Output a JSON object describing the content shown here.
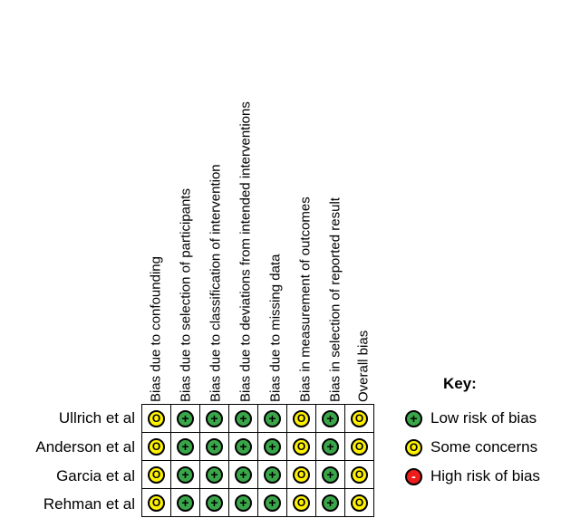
{
  "columns": [
    "Bias due to confounding",
    "Bias due to selection of participants",
    "Bias due to classification of intervention",
    "Bias due to deviations from intended interventions",
    "Bias due to missing data",
    "Bias in measurement of outcomes",
    "Bias in selection of reported result",
    "Overall bias"
  ],
  "studies": [
    {
      "name": "Ullrich et al",
      "ratings": [
        "some",
        "low",
        "low",
        "low",
        "low",
        "some",
        "low",
        "some"
      ]
    },
    {
      "name": "Anderson et al",
      "ratings": [
        "some",
        "low",
        "low",
        "low",
        "low",
        "some",
        "low",
        "some"
      ]
    },
    {
      "name": "Garcia et al",
      "ratings": [
        "some",
        "low",
        "low",
        "low",
        "low",
        "some",
        "low",
        "some"
      ]
    },
    {
      "name": "Rehman et al",
      "ratings": [
        "some",
        "low",
        "low",
        "low",
        "low",
        "some",
        "low",
        "some"
      ]
    }
  ],
  "key": {
    "title": "Key:",
    "items": [
      {
        "level": "low",
        "label": "Low risk of bias",
        "color": "#3aa64a"
      },
      {
        "level": "some",
        "label": "Some concerns",
        "color": "#fff200"
      },
      {
        "level": "high",
        "label": "High risk of bias",
        "color": "#ee1c1c"
      }
    ]
  }
}
